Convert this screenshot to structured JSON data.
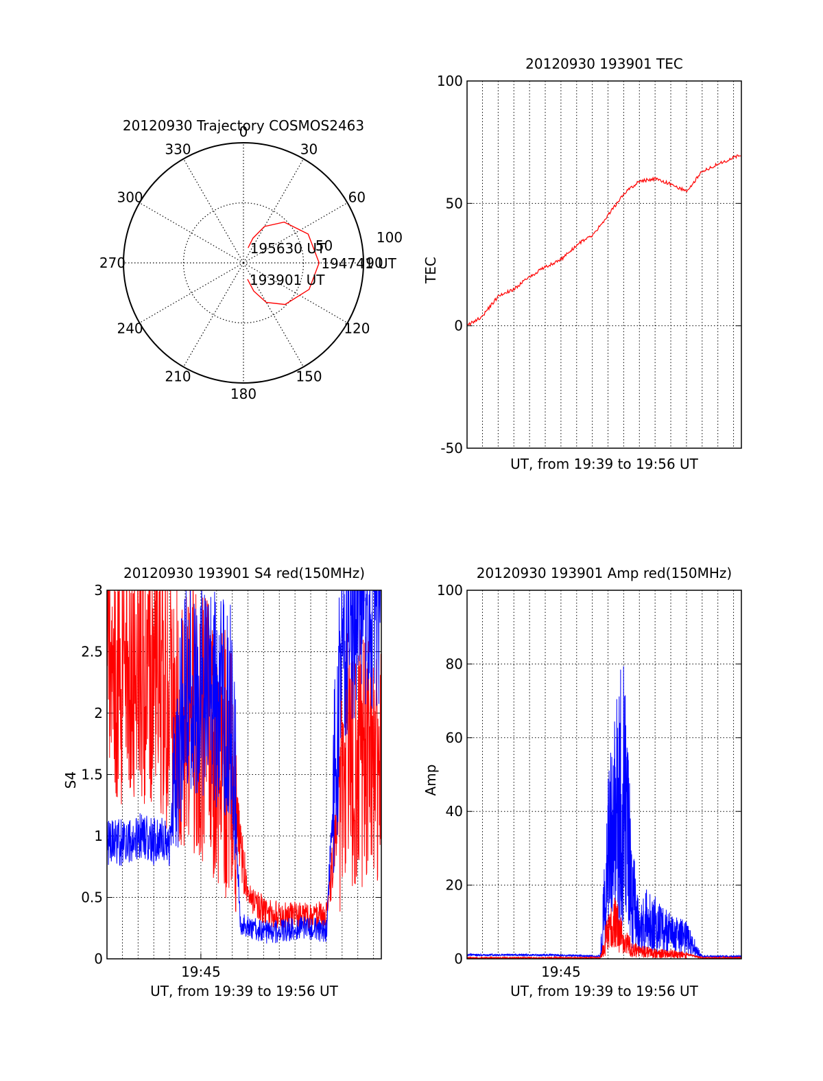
{
  "chart_data": [
    {
      "type": "polar",
      "title": "20120930 Trajectory COSMOS2463",
      "angle_labels": [
        "0",
        "30",
        "60",
        "90",
        "120",
        "150",
        "180",
        "210",
        "240",
        "270",
        "300",
        "330"
      ],
      "radius_labels": [
        "50",
        "100"
      ],
      "rlim": [
        0,
        100
      ],
      "grid": true,
      "series": [
        {
          "color": "#ff0000",
          "points": [
            {
              "az": 166,
              "el": 14
            },
            {
              "az": 160,
              "el": 25
            },
            {
              "az": 150,
              "el": 38
            },
            {
              "az": 135,
              "el": 49
            },
            {
              "az": 112,
              "el": 59
            },
            {
              "az": 90,
              "el": 63
            },
            {
              "az": 66,
              "el": 59
            },
            {
              "az": 45,
              "el": 48
            },
            {
              "az": 30,
              "el": 35
            },
            {
              "az": 21,
              "el": 22
            },
            {
              "az": 17,
              "el": 13
            }
          ]
        }
      ],
      "annotations": [
        {
          "text": "193901 UT",
          "az": 166,
          "el": 14
        },
        {
          "text": "194741 UT",
          "az": 90,
          "el": 63
        },
        {
          "text": "195630 UT",
          "az": 17,
          "el": 13
        }
      ]
    },
    {
      "type": "line",
      "title": "20120930 193901 TEC",
      "xlabel": "UT, from 19:39 to 19:56 UT",
      "ylabel": "TEC",
      "xlim": [
        "19:39:01",
        "19:56:30"
      ],
      "ylim": [
        -50,
        100
      ],
      "yticks": [
        "-50",
        "0",
        "50",
        "100"
      ],
      "grid": true,
      "series": [
        {
          "color": "#ff0000",
          "x": [
            "19:39:01",
            "19:40:00",
            "19:41:00",
            "19:42:00",
            "19:43:00",
            "19:44:00",
            "19:45:00",
            "19:46:00",
            "19:47:00",
            "19:48:00",
            "19:49:00",
            "19:50:00",
            "19:51:00",
            "19:52:00",
            "19:53:00",
            "19:54:00",
            "19:55:00",
            "19:56:30"
          ],
          "y": [
            0,
            4,
            12,
            15,
            20,
            24,
            27,
            33,
            37,
            45,
            54,
            59,
            60,
            58,
            55,
            63,
            66,
            70
          ]
        }
      ]
    },
    {
      "type": "line",
      "title": "20120930 193901 S4 red(150MHz)",
      "xlabel": "UT, from 19:39 to 19:56 UT",
      "ylabel": "S4",
      "xlim": [
        "19:39:01",
        "19:56:30"
      ],
      "xticks": [
        "19:45"
      ],
      "ylim": [
        0,
        3
      ],
      "yticks": [
        "0",
        "0.5",
        "1",
        "1.5",
        "2",
        "2.5",
        "3"
      ],
      "grid": true,
      "series": [
        {
          "color": "#ff0000",
          "x": [
            "19:39:01",
            "19:40:00",
            "19:41:00",
            "19:42:00",
            "19:43:00",
            "19:44:00",
            "19:45:00",
            "19:46:00",
            "19:47:00",
            "19:47:30",
            "19:48:00",
            "19:49:00",
            "19:50:00",
            "19:51:00",
            "19:52:00",
            "19:53:00",
            "19:54:00",
            "19:55:00",
            "19:56:30"
          ],
          "y": [
            2.4,
            2.3,
            2.4,
            2.3,
            2.1,
            2.0,
            1.9,
            1.7,
            1.5,
            0.9,
            0.5,
            0.4,
            0.35,
            0.35,
            0.35,
            0.35,
            1.5,
            1.7,
            1.6
          ]
        },
        {
          "color": "#0000ff",
          "x": [
            "19:39:01",
            "19:40:00",
            "19:41:00",
            "19:42:00",
            "19:43:00",
            "19:44:00",
            "19:45:00",
            "19:46:00",
            "19:47:00",
            "19:47:30",
            "19:48:00",
            "19:49:00",
            "19:50:00",
            "19:51:00",
            "19:52:00",
            "19:53:00",
            "19:54:00",
            "19:55:00",
            "19:56:30"
          ],
          "y": [
            0.95,
            0.95,
            1.0,
            0.95,
            0.95,
            2.2,
            2.2,
            2.1,
            2.0,
            0.3,
            0.25,
            0.22,
            0.22,
            0.25,
            0.25,
            0.22,
            2.6,
            2.9,
            2.9
          ]
        }
      ]
    },
    {
      "type": "line",
      "title": "20120930 193901 Amp red(150MHz)",
      "xlabel": "UT, from 19:39 to 19:56 UT",
      "ylabel": "Amp",
      "xlim": [
        "19:39:01",
        "19:56:30"
      ],
      "xticks": [
        "19:45"
      ],
      "ylim": [
        0,
        100
      ],
      "yticks": [
        "0",
        "20",
        "40",
        "60",
        "80",
        "100"
      ],
      "grid": true,
      "series": [
        {
          "color": "#0000ff",
          "x": [
            "19:39:01",
            "19:40:00",
            "19:41:00",
            "19:42:00",
            "19:43:00",
            "19:44:00",
            "19:45:00",
            "19:46:00",
            "19:47:00",
            "19:47:30",
            "19:48:00",
            "19:48:30",
            "19:49:00",
            "19:49:30",
            "19:50:00",
            "19:50:30",
            "19:51:00",
            "19:52:00",
            "19:53:00",
            "19:54:00",
            "19:55:00",
            "19:56:30"
          ],
          "y": [
            0.8,
            0.8,
            0.8,
            0.8,
            0.8,
            0.8,
            0.7,
            0.6,
            0.5,
            0.5,
            28,
            40,
            50,
            20,
            8,
            12,
            10,
            7,
            6,
            0.4,
            0.4,
            0.4
          ]
        },
        {
          "color": "#ff0000",
          "x": [
            "19:39:01",
            "19:40:00",
            "19:41:00",
            "19:42:00",
            "19:43:00",
            "19:44:00",
            "19:45:00",
            "19:46:00",
            "19:47:00",
            "19:47:30",
            "19:48:00",
            "19:48:30",
            "19:49:00",
            "19:49:30",
            "19:50:00",
            "19:50:30",
            "19:51:00",
            "19:52:00",
            "19:53:00",
            "19:54:00",
            "19:55:00",
            "19:56:30"
          ],
          "y": [
            0,
            0,
            0,
            0,
            0,
            0,
            0,
            0,
            0,
            0,
            8,
            10,
            5,
            3,
            2,
            2,
            1.5,
            1.5,
            1,
            0,
            0,
            0
          ]
        }
      ]
    }
  ]
}
